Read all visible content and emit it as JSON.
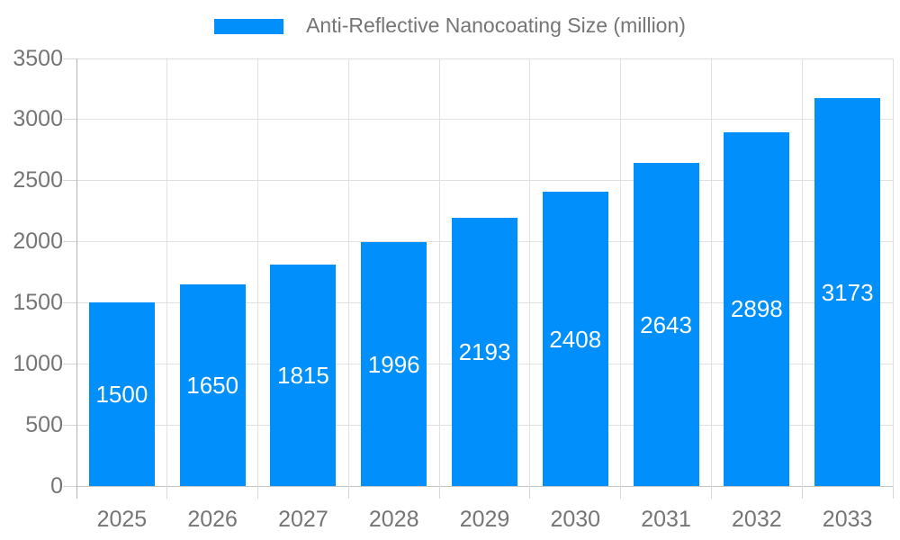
{
  "chart_data": {
    "type": "bar",
    "title": "",
    "legend": {
      "label": "Anti-Reflective Nanocoating Size (million)",
      "position": "top"
    },
    "categories": [
      "2025",
      "2026",
      "2027",
      "2028",
      "2029",
      "2030",
      "2031",
      "2032",
      "2033"
    ],
    "series": [
      {
        "name": "Anti-Reflective Nanocoating Size (million)",
        "values": [
          1500,
          1650,
          1815,
          1996,
          2193,
          2408,
          2643,
          2898,
          3173
        ]
      }
    ],
    "bar_value_labels_shown": true,
    "xlabel": "",
    "ylabel": "",
    "ylim": [
      0,
      3500
    ],
    "ytick_step": 500,
    "yticks": [
      0,
      500,
      1000,
      1500,
      2000,
      2500,
      3000,
      3500
    ],
    "grid": true,
    "colors": {
      "bar": "#008FFB",
      "bar_label_text": "#FFFFFF",
      "axis_label_text": "#757575",
      "legend_text": "#757575",
      "gridline": "#E0E0E0",
      "baseline": "#C4C4C4",
      "axis_line": "#B3B3B3",
      "tick": "#D6D6D6",
      "background": "#FFFFFF"
    }
  }
}
